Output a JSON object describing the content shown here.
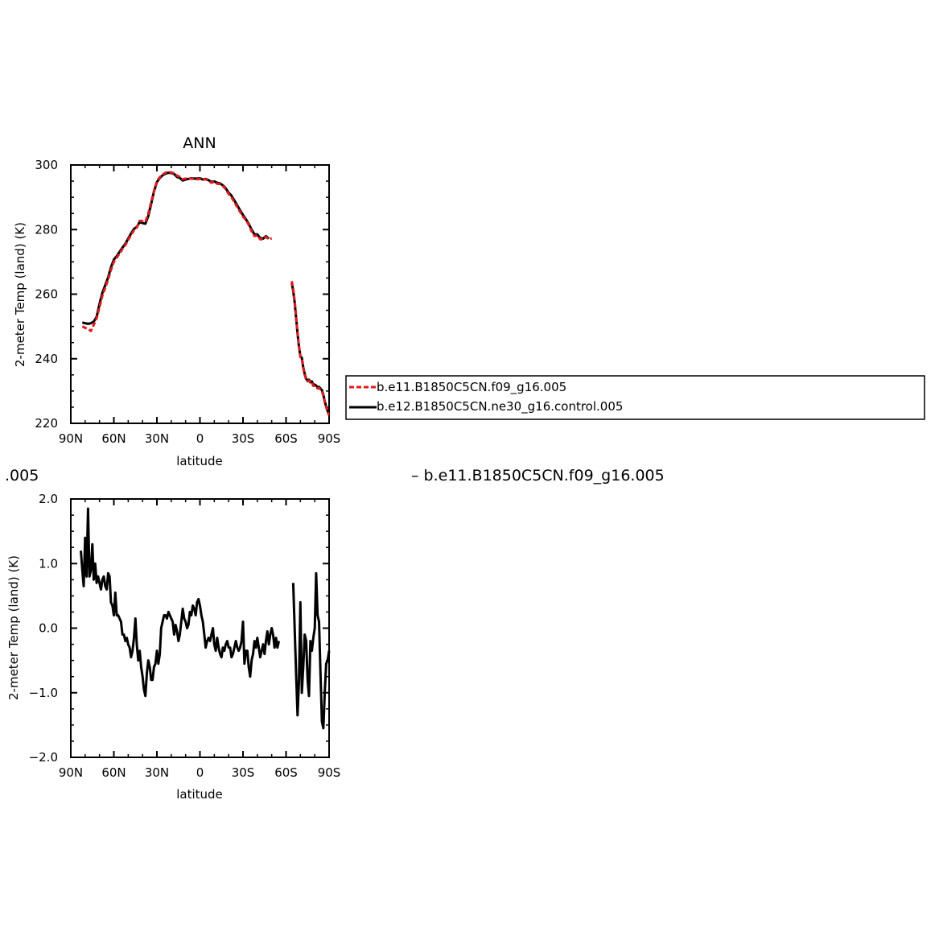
{
  "chart_data": [
    {
      "type": "line",
      "title": "ANN",
      "xlabel": "latitude",
      "ylabel": "2-meter Temp (land) (K)",
      "xlim": [
        90,
        -90
      ],
      "ylim": [
        220,
        300
      ],
      "xticks": [
        90,
        60,
        30,
        0,
        -30,
        -60,
        -90
      ],
      "xtick_labels": [
        "90N",
        "60N",
        "30N",
        "0",
        "30S",
        "60S",
        "90S"
      ],
      "yticks": [
        220,
        240,
        260,
        280,
        300
      ],
      "ytick_labels": [
        "220",
        "240",
        "260",
        "280",
        "300"
      ],
      "legend_position": "right",
      "series": [
        {
          "name": "b.e11.B1850C5CN.f09_g16.005",
          "color": "#e31a1c",
          "style": "dashed",
          "x": [
            82,
            80,
            78,
            76,
            74,
            72,
            70,
            68,
            66,
            64,
            62,
            60,
            58,
            56,
            54,
            52,
            50,
            48,
            46,
            44,
            42,
            40,
            38,
            36,
            34,
            32,
            30,
            28,
            26,
            24,
            22,
            20,
            18,
            16,
            14,
            12,
            10,
            8,
            6,
            4,
            2,
            0,
            -2,
            -4,
            -6,
            -8,
            -10,
            -12,
            -14,
            -16,
            -18,
            -20,
            -22,
            -24,
            -26,
            -28,
            -30,
            -32,
            -34,
            -36,
            -38,
            -40,
            -42,
            -44,
            -46,
            -48,
            -50,
            -52,
            -54,
            -56
          ],
          "y": [
            250,
            249.6,
            249.2,
            248.6,
            250.5,
            252.5,
            256,
            259.5,
            262,
            264.5,
            267.5,
            270,
            271.3,
            272.6,
            274,
            275.2,
            276.8,
            278.3,
            279.8,
            280.6,
            282.7,
            282.6,
            282.4,
            285,
            288.5,
            292,
            295,
            296.2,
            297,
            297.6,
            297.8,
            297.7,
            297.4,
            296.7,
            296.3,
            295.6,
            295.8,
            295.7,
            295.8,
            295.7,
            295.6,
            295.7,
            295.4,
            295.6,
            295.1,
            294.5,
            294.8,
            294.2,
            294.1,
            293.5,
            292.5,
            291,
            290,
            288.5,
            287,
            285.5,
            284,
            283,
            281.5,
            279.5,
            278,
            278.2,
            277,
            277,
            277.8,
            277,
            277.3,
            null,
            null,
            null
          ]
        },
        {
          "name": "b.e12.B1850C5CN.ne30_g16.control.005",
          "color": "#000000",
          "style": "solid",
          "x": [
            82,
            80,
            78,
            76,
            74,
            72,
            70,
            68,
            66,
            64,
            62,
            60,
            58,
            56,
            54,
            52,
            50,
            48,
            46,
            44,
            42,
            40,
            38,
            36,
            34,
            32,
            30,
            28,
            26,
            24,
            22,
            20,
            18,
            16,
            14,
            12,
            10,
            8,
            6,
            4,
            2,
            0,
            -2,
            -4,
            -6,
            -8,
            -10,
            -12,
            -14,
            -16,
            -18,
            -20,
            -22,
            -24,
            -26,
            -28,
            -30,
            -32,
            -34,
            -36,
            -38,
            -40,
            -42,
            -44,
            -46,
            -48,
            -50,
            -52,
            -54,
            -56
          ],
          "y": [
            251.2,
            251,
            250.8,
            251,
            251.5,
            253,
            257,
            260.4,
            262.8,
            265.2,
            268.3,
            270.7,
            271.8,
            273.1,
            274.4,
            275.6,
            277.2,
            278.8,
            280.2,
            280.8,
            282.3,
            282,
            281.8,
            284.2,
            288,
            291.8,
            294.7,
            296,
            296.8,
            297.3,
            297.6,
            297.5,
            297.2,
            296.3,
            296,
            295.2,
            295.5,
            295.7,
            295.9,
            295.8,
            295.8,
            295.9,
            295.5,
            295.7,
            295.3,
            294.8,
            294.9,
            294.5,
            294.3,
            293.7,
            292.8,
            291.4,
            290.5,
            289,
            287.5,
            286,
            284.5,
            283.2,
            281.8,
            280,
            278.5,
            278.5,
            277.4,
            277.2,
            278,
            277.2,
            null,
            null,
            null,
            null
          ]
        }
      ],
      "series_south": [
        {
          "name": "b.e11.B1850C5CN.f09_g16.005",
          "x": [
            -64,
            -65,
            -66,
            -67,
            -68,
            -69,
            -70,
            -71,
            -72,
            -73,
            -74,
            -75,
            -76,
            -77,
            -78,
            -79,
            -80,
            -81,
            -82,
            -83,
            -84,
            -85,
            -86,
            -87,
            -88,
            -89,
            -90
          ],
          "y": [
            264,
            261.5,
            258,
            253,
            248,
            244,
            240.5,
            240,
            237,
            235,
            233.5,
            233,
            233.2,
            232.5,
            232.7,
            231.6,
            231.6,
            231.4,
            230.8,
            230.9,
            230.5,
            230,
            228.5,
            226.5,
            225,
            223.5,
            222.5
          ]
        },
        {
          "name": "b.e12.B1850C5CN.ne30_g16.control.005",
          "x": [
            -64,
            -65,
            -66,
            -67,
            -68,
            -69,
            -70,
            -71,
            -72,
            -73,
            -74,
            -75,
            -76,
            -77,
            -78,
            -79,
            -80,
            -81,
            -82,
            -83,
            -84,
            -85,
            -86,
            -87,
            -88,
            -89,
            -90
          ],
          "y": [
            263.5,
            261,
            257.5,
            252.7,
            247.8,
            243.7,
            240.8,
            240.3,
            237.3,
            235.3,
            233.8,
            233.2,
            233.5,
            232.7,
            233,
            232,
            232,
            231.7,
            231.2,
            231.3,
            230.8,
            230.3,
            228.8,
            226.8,
            225.2,
            223.8,
            222.8
          ]
        }
      ]
    },
    {
      "type": "line",
      "xlabel": "latitude",
      "ylabel": "2-meter Temp (land) (K)",
      "xlim": [
        90,
        -90
      ],
      "ylim": [
        -2.0,
        2.0
      ],
      "xticks": [
        90,
        60,
        30,
        0,
        -30,
        -60,
        -90
      ],
      "xtick_labels": [
        "90N",
        "60N",
        "30N",
        "0",
        "30S",
        "60S",
        "90S"
      ],
      "yticks": [
        -2.0,
        -1.0,
        0.0,
        1.0,
        2.0
      ],
      "ytick_labels": [
        "−2.0",
        "−1.0",
        "0.0",
        "1.0",
        "2.0"
      ],
      "series": [
        {
          "color": "#000000",
          "x": [
            83,
            82,
            81,
            80,
            79,
            78,
            77,
            76,
            75,
            74,
            73,
            72,
            71,
            70,
            69,
            68,
            67,
            66,
            65,
            64,
            63,
            62,
            61,
            60,
            59,
            58,
            57,
            56,
            55,
            54,
            53,
            52,
            51,
            50,
            49,
            48,
            47,
            46,
            45,
            44,
            43,
            42,
            41,
            40,
            39,
            38,
            37,
            36,
            35,
            34,
            33,
            32,
            31,
            30,
            29,
            28,
            27,
            26,
            25,
            24,
            23,
            22,
            21,
            20,
            19,
            18,
            17,
            16,
            15,
            14,
            13,
            12,
            11,
            10,
            9,
            8,
            7,
            6,
            5,
            4,
            3,
            2,
            1,
            0,
            -1,
            -2,
            -3,
            -4,
            -5,
            -6,
            -7,
            -8,
            -9,
            -10,
            -11,
            -12,
            -13,
            -14,
            -15,
            -16,
            -17,
            -18,
            -19,
            -20,
            -21,
            -22,
            -23,
            -24,
            -25,
            -26,
            -27,
            -28,
            -29,
            -30,
            -31,
            -32,
            -33,
            -34,
            -35,
            -36,
            -37,
            -38,
            -39,
            -40,
            -41,
            -42,
            -43,
            -44,
            -45,
            -46,
            -47,
            -48,
            -49,
            -50,
            -51,
            -52,
            -53,
            -54,
            -55
          ],
          "y": [
            1.2,
            0.9,
            0.65,
            1.4,
            0.8,
            1.85,
            0.8,
            0.9,
            1.3,
            0.75,
            1.0,
            0.7,
            0.8,
            0.7,
            0.6,
            0.75,
            0.8,
            0.65,
            0.6,
            0.85,
            0.8,
            0.4,
            0.35,
            0.2,
            0.55,
            0.2,
            0.2,
            0.15,
            0.1,
            -0.1,
            -0.1,
            -0.2,
            -0.15,
            -0.25,
            -0.3,
            -0.45,
            -0.35,
            -0.15,
            0.15,
            -0.25,
            -0.5,
            -0.35,
            -0.6,
            -0.75,
            -0.95,
            -1.05,
            -0.7,
            -0.5,
            -0.6,
            -0.8,
            -0.8,
            -0.6,
            -0.55,
            -0.35,
            -0.55,
            -0.4,
            0.0,
            0.1,
            0.2,
            0.2,
            0.15,
            0.25,
            0.2,
            0.15,
            0.1,
            -0.1,
            0.05,
            -0.05,
            -0.2,
            -0.1,
            0.1,
            0.3,
            0.15,
            0.1,
            0.0,
            0.05,
            0.25,
            0.2,
            0.35,
            0.3,
            0.2,
            0.4,
            0.45,
            0.35,
            0.2,
            0.1,
            -0.1,
            -0.3,
            -0.2,
            -0.15,
            -0.2,
            -0.1,
            0.0,
            -0.25,
            -0.35,
            -0.15,
            -0.3,
            -0.4,
            -0.45,
            -0.3,
            -0.35,
            -0.25,
            -0.2,
            -0.3,
            -0.3,
            -0.45,
            -0.4,
            -0.3,
            -0.2,
            -0.3,
            -0.35,
            -0.3,
            -0.2,
            0.1,
            -0.55,
            -0.35,
            -0.35,
            -0.6,
            -0.75,
            -0.5,
            -0.4,
            -0.2,
            -0.3,
            -0.15,
            -0.3,
            -0.45,
            -0.35,
            -0.25,
            -0.4,
            -0.2,
            -0.05,
            -0.25,
            -0.1,
            0.0,
            -0.1,
            -0.3,
            -0.15,
            -0.3,
            -0.2
          ],
          "x_south": [
            -65,
            -66,
            -67,
            -68,
            -69,
            -70,
            -71,
            -72,
            -73,
            -74,
            -75,
            -76,
            -77,
            -78,
            -79,
            -80,
            -81,
            -82,
            -83,
            -84,
            -85,
            -86,
            -87,
            -88,
            -89,
            -90
          ],
          "y_south": [
            0.7,
            0.0,
            -0.7,
            -1.35,
            -0.8,
            0.4,
            -1.0,
            -0.6,
            -0.1,
            -0.2,
            -0.8,
            -1.05,
            -0.2,
            -0.35,
            -0.15,
            0.0,
            0.85,
            0.2,
            0.1,
            -0.7,
            -1.45,
            -1.55,
            -1.0,
            -0.55,
            -0.5,
            -0.35
          ]
        }
      ]
    }
  ],
  "clipped_text": {
    "left_fragment": ".005",
    "right_fragment": "– b.e11.B1850C5CN.f09_g16.005"
  }
}
